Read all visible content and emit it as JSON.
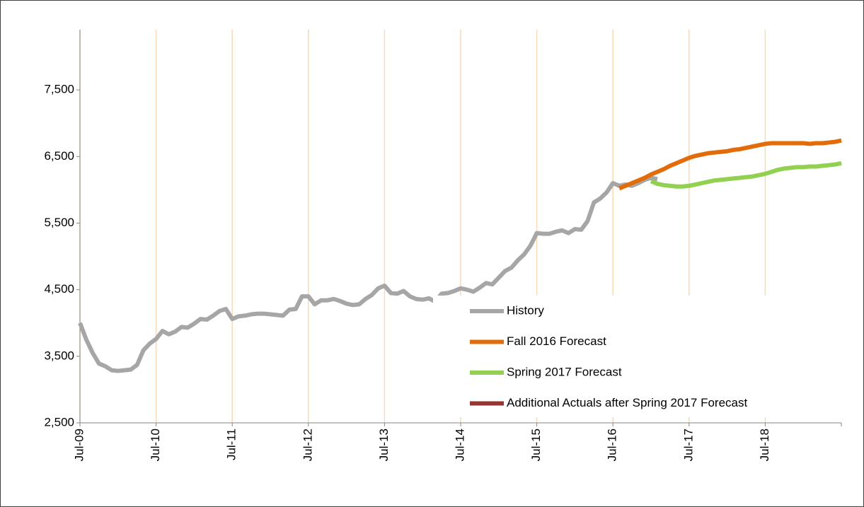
{
  "chart_data": {
    "type": "line",
    "categories": [
      "Jul-09",
      null,
      null,
      null,
      null,
      null,
      null,
      null,
      null,
      null,
      null,
      null,
      "Jul-10",
      null,
      null,
      null,
      null,
      null,
      null,
      null,
      null,
      null,
      null,
      null,
      "Jul-11",
      null,
      null,
      null,
      null,
      null,
      null,
      null,
      null,
      null,
      null,
      null,
      "Jul-12",
      null,
      null,
      null,
      null,
      null,
      null,
      null,
      null,
      null,
      null,
      null,
      "Jul-13",
      null,
      null,
      null,
      null,
      null,
      null,
      null,
      null,
      null,
      null,
      null,
      "Jul-14",
      null,
      null,
      null,
      null,
      null,
      null,
      null,
      null,
      null,
      null,
      null,
      "Jul-15",
      null,
      null,
      null,
      null,
      null,
      null,
      null,
      null,
      null,
      null,
      null,
      "Jul-16",
      null,
      null,
      null,
      null,
      null,
      null,
      null,
      null,
      null,
      null,
      null,
      "Jul-17",
      null,
      null,
      null,
      null,
      null,
      null,
      null,
      null,
      null,
      null,
      null,
      "Jul-18",
      null,
      null,
      null,
      null,
      null,
      null,
      null,
      null,
      null,
      null,
      null,
      null
    ],
    "series": [
      {
        "name": "History",
        "color": "#a6a6a6",
        "values": [
          4000,
          3750,
          3550,
          3390,
          3350,
          3290,
          3280,
          3290,
          3300,
          3370,
          3590,
          3690,
          3760,
          3880,
          3830,
          3870,
          3940,
          3930,
          3990,
          4060,
          4050,
          4110,
          4180,
          4210,
          4060,
          4100,
          4110,
          4130,
          4140,
          4140,
          4130,
          4120,
          4110,
          4200,
          4210,
          4400,
          4400,
          4280,
          4340,
          4340,
          4360,
          4330,
          4290,
          4270,
          4280,
          4360,
          4420,
          4520,
          4560,
          4450,
          4440,
          4480,
          4400,
          4360,
          4350,
          4370,
          4320,
          4440,
          4450,
          4480,
          4520,
          4500,
          4470,
          4530,
          4600,
          4580,
          4680,
          4780,
          4830,
          4940,
          5030,
          5160,
          5350,
          5340,
          5340,
          5370,
          5390,
          5350,
          5410,
          5400,
          5530,
          5810,
          5870,
          5960,
          6100,
          6060,
          6080,
          6060,
          6100,
          6150,
          6180,
          6160,
          null,
          null,
          null,
          null,
          null,
          null,
          null,
          null,
          null,
          null,
          null,
          null,
          null,
          null,
          null,
          null,
          null,
          null,
          null,
          null,
          null,
          null,
          null,
          null,
          null,
          null,
          null,
          null,
          null
        ]
      },
      {
        "name": "Fall 2016 Forecast",
        "color": "#e36c0a",
        "values": [
          null,
          null,
          null,
          null,
          null,
          null,
          null,
          null,
          null,
          null,
          null,
          null,
          null,
          null,
          null,
          null,
          null,
          null,
          null,
          null,
          null,
          null,
          null,
          null,
          null,
          null,
          null,
          null,
          null,
          null,
          null,
          null,
          null,
          null,
          null,
          null,
          null,
          null,
          null,
          null,
          null,
          null,
          null,
          null,
          null,
          null,
          null,
          null,
          null,
          null,
          null,
          null,
          null,
          null,
          null,
          null,
          null,
          null,
          null,
          null,
          null,
          null,
          null,
          null,
          null,
          null,
          null,
          null,
          null,
          null,
          null,
          null,
          null,
          null,
          null,
          null,
          null,
          null,
          null,
          null,
          null,
          null,
          null,
          null,
          null,
          6020,
          6060,
          6100,
          6140,
          6180,
          6230,
          6270,
          6310,
          6360,
          6400,
          6440,
          6480,
          6510,
          6530,
          6550,
          6560,
          6570,
          6580,
          6600,
          6610,
          6630,
          6650,
          6670,
          6690,
          6700,
          6700,
          6700,
          6700,
          6700,
          6700,
          6690,
          6700,
          6700,
          6710,
          6720,
          6740
        ]
      },
      {
        "name": "Spring 2017 Forecast",
        "color": "#92d050",
        "values": [
          null,
          null,
          null,
          null,
          null,
          null,
          null,
          null,
          null,
          null,
          null,
          null,
          null,
          null,
          null,
          null,
          null,
          null,
          null,
          null,
          null,
          null,
          null,
          null,
          null,
          null,
          null,
          null,
          null,
          null,
          null,
          null,
          null,
          null,
          null,
          null,
          null,
          null,
          null,
          null,
          null,
          null,
          null,
          null,
          null,
          null,
          null,
          null,
          null,
          null,
          null,
          null,
          null,
          null,
          null,
          null,
          null,
          null,
          null,
          null,
          null,
          null,
          null,
          null,
          null,
          null,
          null,
          null,
          null,
          null,
          null,
          null,
          null,
          null,
          null,
          null,
          null,
          null,
          null,
          null,
          null,
          null,
          null,
          null,
          null,
          null,
          null,
          null,
          null,
          null,
          6130,
          6090,
          6070,
          6060,
          6050,
          6050,
          6060,
          6080,
          6100,
          6120,
          6140,
          6150,
          6160,
          6170,
          6180,
          6190,
          6200,
          6220,
          6240,
          6270,
          6300,
          6320,
          6330,
          6340,
          6340,
          6350,
          6350,
          6360,
          6370,
          6380,
          6400
        ]
      },
      {
        "name": "Additional Actuals after Spring 2017 Forecast",
        "color": "#943634",
        "values": [
          null,
          null,
          null,
          null,
          null,
          null,
          null,
          null,
          null,
          null,
          null,
          null,
          null,
          null,
          null,
          null,
          null,
          null,
          null,
          null,
          null,
          null,
          null,
          null,
          null,
          null,
          null,
          null,
          null,
          null,
          null,
          null,
          null,
          null,
          null,
          null,
          null,
          null,
          null,
          null,
          null,
          null,
          null,
          null,
          null,
          null,
          null,
          null,
          null,
          null,
          null,
          null,
          null,
          null,
          null,
          null,
          null,
          null,
          null,
          null,
          null,
          null,
          null,
          null,
          null,
          null,
          null,
          null,
          null,
          null,
          null,
          null,
          null,
          null,
          null,
          null,
          null,
          null,
          null,
          null,
          null,
          null,
          null,
          null,
          null,
          null,
          null,
          null,
          null,
          null,
          null,
          null,
          null,
          null,
          null,
          null,
          null,
          null,
          null,
          null,
          null,
          null,
          null,
          null,
          null,
          null,
          null,
          null,
          null,
          null,
          null,
          null,
          null,
          null,
          null,
          null,
          null,
          null,
          null,
          null,
          null
        ]
      }
    ],
    "ylim": [
      2500,
      8500
    ],
    "yticks": [
      {
        "value": 2500,
        "label": "2,500"
      },
      {
        "value": 3500,
        "label": "3,500"
      },
      {
        "value": 4500,
        "label": "4,500"
      },
      {
        "value": 5500,
        "label": "5,500"
      },
      {
        "value": 6500,
        "label": "6,500"
      },
      {
        "value": 7500,
        "label": "7,500"
      }
    ],
    "grid": "x",
    "legend": "lower right"
  }
}
